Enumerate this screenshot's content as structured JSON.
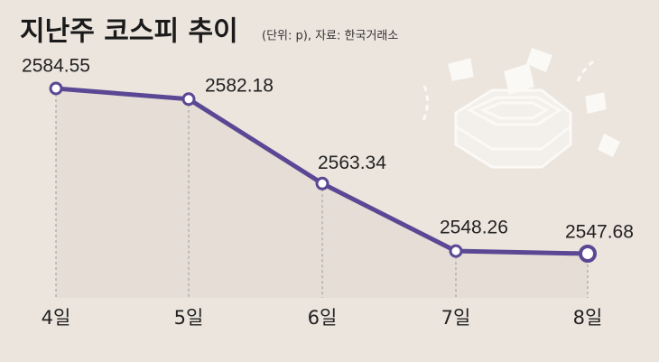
{
  "chart_data": {
    "type": "line",
    "title": "지난주 코스피 추이",
    "subtitle": "(단위: p), 자료: 한국거래소",
    "categories": [
      "4일",
      "5일",
      "6일",
      "7일",
      "8일"
    ],
    "values": [
      2584.55,
      2582.18,
      2563.34,
      2548.26,
      2547.68
    ],
    "color": "#5a4894"
  }
}
